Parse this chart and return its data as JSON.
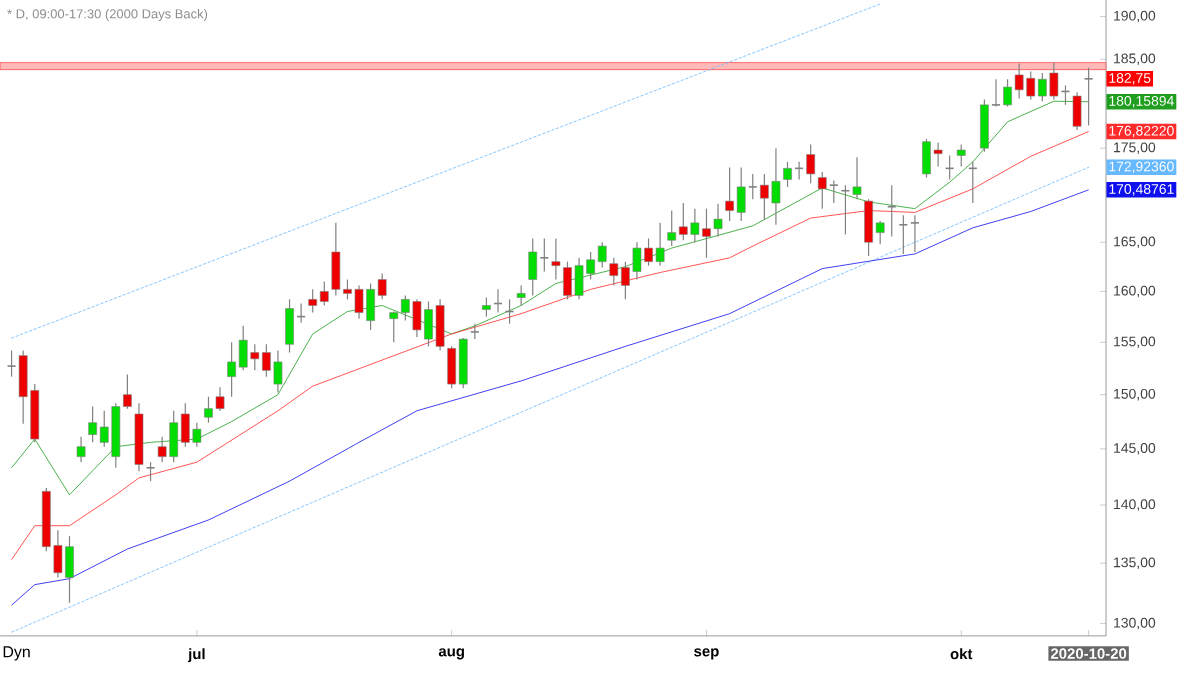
{
  "chart_data": {
    "type": "candlestick",
    "title": "* D, 09:00-17:30 (2000 Days Back)",
    "categories": [
      null,
      null,
      null,
      null,
      null,
      null,
      null,
      null,
      null,
      null,
      null,
      null,
      null,
      null,
      null,
      null,
      "jul",
      null,
      null,
      null,
      null,
      null,
      null,
      null,
      null,
      null,
      null,
      null,
      null,
      null,
      null,
      null,
      null,
      null,
      null,
      null,
      null,
      null,
      "aug",
      null,
      null,
      null,
      null,
      null,
      null,
      null,
      null,
      null,
      null,
      null,
      null,
      null,
      null,
      null,
      null,
      null,
      null,
      null,
      null,
      null,
      "sep",
      null,
      null,
      null,
      null,
      null,
      null,
      null,
      null,
      null,
      null,
      null,
      null,
      null,
      null,
      null,
      null,
      null,
      null,
      null,
      null,
      null,
      "okt",
      null,
      null,
      null,
      null,
      null,
      null,
      null,
      null,
      null,
      null,
      "2020-10-20"
    ],
    "ohlc": [
      [
        152.7,
        154.2,
        151.7,
        152.7
      ],
      [
        153.7,
        154.2,
        147.3,
        149.8
      ],
      [
        150.4,
        151.0,
        145.6,
        145.9
      ],
      [
        141.2,
        141.5,
        136.0,
        136.4
      ],
      [
        136.5,
        137.8,
        133.8,
        134.2
      ],
      [
        133.8,
        137.3,
        131.7,
        136.4
      ],
      [
        144.3,
        146.1,
        143.8,
        145.2
      ],
      [
        146.3,
        148.9,
        145.6,
        147.4
      ],
      [
        145.6,
        148.5,
        145.2,
        147.0
      ],
      [
        144.3,
        149.2,
        143.3,
        148.9
      ],
      [
        150.0,
        151.9,
        148.7,
        148.9
      ],
      [
        148.2,
        149.2,
        143.0,
        143.6
      ],
      [
        143.3,
        143.8,
        142.1,
        143.3
      ],
      [
        145.2,
        146.1,
        143.8,
        144.3
      ],
      [
        144.3,
        148.5,
        143.8,
        147.4
      ],
      [
        148.2,
        149.2,
        145.2,
        145.6
      ],
      [
        145.6,
        147.4,
        145.2,
        146.8
      ],
      [
        147.9,
        149.8,
        147.4,
        148.7
      ],
      [
        149.8,
        150.7,
        148.5,
        148.7
      ],
      [
        151.7,
        155.0,
        149.8,
        153.1
      ],
      [
        152.6,
        156.6,
        152.3,
        155.2
      ],
      [
        154.0,
        154.8,
        152.3,
        153.4
      ],
      [
        154.0,
        154.8,
        151.7,
        152.3
      ],
      [
        151.0,
        154.2,
        150.2,
        153.1
      ],
      [
        154.8,
        159.2,
        154.0,
        158.3
      ],
      [
        157.5,
        158.8,
        156.9,
        157.5
      ],
      [
        159.2,
        160.2,
        157.9,
        158.6
      ],
      [
        160.0,
        161.0,
        158.6,
        159.0
      ],
      [
        164.0,
        167.0,
        159.6,
        160.2
      ],
      [
        160.2,
        161.2,
        159.2,
        159.8
      ],
      [
        160.2,
        160.6,
        157.3,
        157.9
      ],
      [
        157.1,
        160.8,
        156.2,
        160.2
      ],
      [
        161.2,
        161.8,
        159.2,
        159.6
      ],
      [
        157.3,
        158.0,
        155.0,
        157.9
      ],
      [
        157.9,
        159.6,
        157.1,
        159.2
      ],
      [
        159.0,
        159.2,
        155.5,
        156.2
      ],
      [
        155.3,
        159.0,
        154.6,
        158.2
      ],
      [
        158.6,
        159.2,
        154.2,
        154.6
      ],
      [
        154.4,
        154.6,
        150.6,
        151.0
      ],
      [
        151.0,
        155.4,
        150.6,
        155.3
      ],
      [
        156.0,
        156.8,
        155.3,
        156.0
      ],
      [
        158.2,
        159.4,
        157.5,
        158.6
      ],
      [
        158.8,
        160.2,
        157.9,
        158.8
      ],
      [
        158.0,
        159.2,
        156.8,
        158.0
      ],
      [
        159.4,
        160.6,
        158.6,
        159.8
      ],
      [
        161.2,
        165.4,
        159.6,
        164.0
      ],
      [
        163.4,
        165.4,
        162.0,
        163.4
      ],
      [
        163.0,
        165.4,
        161.2,
        162.6
      ],
      [
        162.4,
        163.0,
        159.2,
        159.6
      ],
      [
        159.6,
        163.4,
        159.2,
        162.6
      ],
      [
        161.8,
        164.0,
        161.2,
        163.2
      ],
      [
        163.0,
        165.0,
        162.4,
        164.6
      ],
      [
        162.8,
        163.4,
        160.6,
        161.6
      ],
      [
        162.4,
        163.0,
        159.2,
        160.6
      ],
      [
        162.0,
        165.0,
        161.2,
        164.4
      ],
      [
        164.4,
        165.4,
        162.6,
        163.0
      ],
      [
        163.0,
        167.0,
        162.6,
        164.4
      ],
      [
        165.2,
        168.3,
        164.6,
        166.0
      ],
      [
        166.6,
        169.1,
        165.2,
        165.8
      ],
      [
        165.8,
        168.5,
        165.0,
        167.0
      ],
      [
        166.4,
        168.5,
        163.4,
        165.6
      ],
      [
        166.4,
        169.0,
        165.6,
        167.4
      ],
      [
        169.3,
        172.9,
        167.2,
        168.3
      ],
      [
        168.1,
        172.9,
        167.2,
        170.8
      ],
      [
        170.8,
        172.2,
        169.5,
        170.8
      ],
      [
        171.0,
        172.2,
        167.3,
        169.6
      ],
      [
        169.1,
        175.0,
        166.8,
        171.4
      ],
      [
        171.6,
        173.5,
        170.8,
        172.8
      ],
      [
        172.8,
        173.5,
        171.6,
        172.8
      ],
      [
        174.3,
        175.4,
        171.2,
        172.2
      ],
      [
        171.8,
        172.4,
        168.5,
        170.6
      ],
      [
        171.0,
        171.5,
        169.1,
        171.0
      ],
      [
        170.4,
        171.0,
        165.8,
        170.4
      ],
      [
        170.0,
        174.0,
        169.5,
        170.8
      ],
      [
        169.3,
        169.5,
        163.6,
        165.0
      ],
      [
        166.0,
        167.2,
        164.8,
        167.0
      ],
      [
        168.7,
        171.0,
        165.6,
        168.7
      ],
      [
        166.8,
        167.8,
        163.8,
        166.8
      ],
      [
        167.0,
        167.8,
        164.0,
        167.0
      ],
      [
        172.2,
        176.0,
        171.8,
        175.7
      ],
      [
        174.8,
        175.6,
        173.0,
        174.4
      ],
      [
        172.8,
        174.2,
        171.6,
        172.8
      ],
      [
        174.2,
        175.4,
        173.0,
        174.8
      ],
      [
        172.8,
        173.5,
        169.1,
        172.8
      ],
      [
        175.0,
        180.4,
        174.6,
        179.8
      ],
      [
        179.8,
        182.7,
        179.6,
        179.8
      ],
      [
        179.8,
        182.7,
        179.6,
        181.8
      ],
      [
        183.2,
        184.5,
        180.5,
        181.5
      ],
      [
        182.8,
        183.6,
        180.4,
        180.8
      ],
      [
        180.8,
        183.4,
        180.2,
        182.7
      ],
      [
        183.4,
        184.6,
        180.4,
        180.8
      ],
      [
        181.3,
        182.0,
        179.8,
        181.3
      ],
      [
        180.8,
        181.2,
        177.0,
        177.4
      ],
      [
        182.75,
        184.0,
        177.5,
        182.75
      ]
    ],
    "series": [
      {
        "type": "line",
        "color": "#66b8ff",
        "line_style": "dotted",
        "values": [
          155.4,
          null,
          null,
          null,
          null,
          null,
          null,
          null,
          null,
          null,
          null,
          null,
          null,
          null,
          null,
          null,
          null,
          null,
          null,
          null,
          null,
          null,
          null,
          null,
          null,
          null,
          null,
          null,
          null,
          null,
          null,
          null,
          null,
          null,
          null,
          null,
          null,
          null,
          null,
          null,
          null,
          null,
          null,
          null,
          null,
          null,
          null,
          null,
          null,
          null,
          null,
          null,
          null,
          null,
          null,
          null,
          null,
          null,
          null,
          null,
          null,
          null,
          null,
          null,
          null,
          null,
          null,
          null,
          null,
          null,
          null,
          null,
          null,
          null,
          null,
          191.5,
          null,
          null,
          null,
          null,
          null,
          null,
          null,
          null,
          null,
          null,
          null,
          null,
          null,
          null,
          null,
          null,
          null,
          null
        ]
      },
      {
        "type": "line",
        "color": "#66b8ff",
        "line_style": "dotted",
        "values": [
          129.3,
          null,
          null,
          null,
          null,
          null,
          null,
          null,
          null,
          null,
          null,
          null,
          null,
          null,
          null,
          null,
          null,
          null,
          null,
          null,
          null,
          null,
          null,
          null,
          null,
          null,
          null,
          null,
          null,
          null,
          null,
          null,
          null,
          null,
          null,
          null,
          null,
          null,
          null,
          null,
          null,
          null,
          null,
          null,
          null,
          null,
          null,
          null,
          null,
          null,
          null,
          null,
          null,
          null,
          null,
          null,
          null,
          null,
          null,
          null,
          null,
          null,
          null,
          null,
          null,
          null,
          null,
          null,
          null,
          null,
          null,
          null,
          null,
          null,
          null,
          null,
          null,
          null,
          null,
          null,
          null,
          null,
          null,
          null,
          null,
          null,
          null,
          null,
          null,
          null,
          null,
          null,
          null,
          172.9236
        ],
        "value_labels": [
          null,
          null,
          null,
          null,
          null,
          null,
          null,
          null,
          null,
          null,
          null,
          null,
          null,
          null,
          null,
          null,
          null,
          null,
          null,
          null,
          null,
          null,
          null,
          null,
          null,
          null,
          null,
          null,
          null,
          null,
          null,
          null,
          null,
          null,
          null,
          null,
          null,
          null,
          null,
          null,
          null,
          null,
          null,
          null,
          null,
          null,
          null,
          null,
          null,
          null,
          null,
          null,
          null,
          null,
          null,
          null,
          null,
          null,
          null,
          null,
          null,
          null,
          null,
          null,
          null,
          null,
          null,
          null,
          null,
          null,
          null,
          null,
          null,
          null,
          null,
          null,
          null,
          null,
          null,
          null,
          null,
          null,
          null,
          null,
          null,
          null,
          null,
          null,
          null,
          null,
          null,
          null,
          null,
          "172,92360"
        ]
      },
      {
        "type": "line",
        "color": "#1f9e1f",
        "line_style": "solid",
        "values": [
          143.3,
          null,
          145.9,
          null,
          null,
          140.9,
          null,
          null,
          null,
          145.2,
          null,
          null,
          145.6,
          null,
          null,
          null,
          145.9,
          null,
          null,
          147.5,
          null,
          null,
          null,
          150.0,
          null,
          null,
          155.8,
          null,
          null,
          158.0,
          null,
          null,
          158.6,
          null,
          null,
          null,
          null,
          null,
          155.8,
          null,
          156.6,
          null,
          null,
          null,
          158.6,
          null,
          null,
          160.8,
          null,
          null,
          null,
          null,
          null,
          162.5,
          null,
          null,
          null,
          164.4,
          null,
          null,
          null,
          null,
          null,
          null,
          166.7,
          null,
          null,
          null,
          null,
          null,
          170.7,
          null,
          null,
          null,
          169.2,
          null,
          null,
          null,
          168.5,
          null,
          null,
          171.3,
          null,
          173.5,
          null,
          null,
          177.9,
          null,
          null,
          null,
          180.2,
          null,
          null,
          180.15894
        ],
        "value_labels": [
          null,
          null,
          null,
          null,
          null,
          null,
          null,
          null,
          null,
          null,
          null,
          null,
          null,
          null,
          null,
          null,
          null,
          null,
          null,
          null,
          null,
          null,
          null,
          null,
          null,
          null,
          null,
          null,
          null,
          null,
          null,
          null,
          null,
          null,
          null,
          null,
          null,
          null,
          null,
          null,
          null,
          null,
          null,
          null,
          null,
          null,
          null,
          null,
          null,
          null,
          null,
          null,
          null,
          null,
          null,
          null,
          null,
          null,
          null,
          null,
          null,
          null,
          null,
          null,
          null,
          null,
          null,
          null,
          null,
          null,
          null,
          null,
          null,
          null,
          null,
          null,
          null,
          null,
          null,
          null,
          null,
          null,
          null,
          null,
          null,
          null,
          null,
          null,
          null,
          null,
          null,
          null,
          null,
          "180,15894"
        ]
      },
      {
        "type": "line",
        "color": "#ff2a2a",
        "line_style": "solid",
        "values": [
          135.3,
          null,
          138.2,
          null,
          null,
          138.2,
          null,
          null,
          null,
          140.9,
          null,
          142.4,
          null,
          null,
          null,
          null,
          143.8,
          null,
          null,
          null,
          null,
          null,
          null,
          148.5,
          null,
          null,
          150.8,
          null,
          null,
          null,
          null,
          null,
          null,
          null,
          null,
          null,
          null,
          null,
          155.8,
          null,
          null,
          null,
          null,
          null,
          157.8,
          null,
          null,
          null,
          null,
          null,
          160.2,
          null,
          null,
          null,
          null,
          null,
          161.9,
          null,
          null,
          null,
          null,
          null,
          163.4,
          null,
          164.6,
          null,
          null,
          null,
          null,
          167.5,
          null,
          null,
          null,
          null,
          168.3,
          null,
          null,
          null,
          168.1,
          null,
          null,
          null,
          null,
          170.6,
          null,
          null,
          null,
          null,
          174.1,
          null,
          null,
          null,
          null,
          176.8222
        ],
        "value_labels": [
          null,
          null,
          null,
          null,
          null,
          null,
          null,
          null,
          null,
          null,
          null,
          null,
          null,
          null,
          null,
          null,
          null,
          null,
          null,
          null,
          null,
          null,
          null,
          null,
          null,
          null,
          null,
          null,
          null,
          null,
          null,
          null,
          null,
          null,
          null,
          null,
          null,
          null,
          null,
          null,
          null,
          null,
          null,
          null,
          null,
          null,
          null,
          null,
          null,
          null,
          null,
          null,
          null,
          null,
          null,
          null,
          null,
          null,
          null,
          null,
          null,
          null,
          null,
          null,
          null,
          null,
          null,
          null,
          null,
          null,
          null,
          null,
          null,
          null,
          null,
          null,
          null,
          null,
          null,
          null,
          null,
          null,
          null,
          null,
          null,
          null,
          null,
          null,
          null,
          null,
          null,
          null,
          null,
          "176,82220"
        ]
      },
      {
        "type": "line",
        "color": "#1010ee",
        "line_style": "solid",
        "values": [
          131.5,
          null,
          133.2,
          null,
          null,
          133.7,
          null,
          null,
          null,
          null,
          136.2,
          null,
          null,
          null,
          null,
          null,
          null,
          138.7,
          null,
          null,
          null,
          null,
          null,
          null,
          142.1,
          null,
          null,
          null,
          null,
          null,
          145.6,
          null,
          null,
          null,
          null,
          148.5,
          null,
          null,
          null,
          null,
          null,
          null,
          null,
          null,
          151.3,
          null,
          null,
          null,
          null,
          null,
          null,
          null,
          null,
          154.6,
          null,
          null,
          null,
          null,
          null,
          null,
          null,
          null,
          157.8,
          null,
          null,
          null,
          null,
          null,
          null,
          null,
          162.3,
          null,
          null,
          null,
          null,
          null,
          null,
          null,
          163.8,
          null,
          null,
          null,
          null,
          166.5,
          null,
          null,
          null,
          null,
          168.2,
          null,
          null,
          null,
          null,
          170.48761
        ],
        "value_labels": [
          null,
          null,
          null,
          null,
          null,
          null,
          null,
          null,
          null,
          null,
          null,
          null,
          null,
          null,
          null,
          null,
          null,
          null,
          null,
          null,
          null,
          null,
          null,
          null,
          null,
          null,
          null,
          null,
          null,
          null,
          null,
          null,
          null,
          null,
          null,
          null,
          null,
          null,
          null,
          null,
          null,
          null,
          null,
          null,
          null,
          null,
          null,
          null,
          null,
          null,
          null,
          null,
          null,
          null,
          null,
          null,
          null,
          null,
          null,
          null,
          null,
          null,
          null,
          null,
          null,
          null,
          null,
          null,
          null,
          null,
          null,
          null,
          null,
          null,
          null,
          null,
          null,
          null,
          null,
          null,
          null,
          null,
          null,
          null,
          null,
          null,
          null,
          null,
          null,
          null,
          null,
          null,
          null,
          "170,48761"
        ]
      }
    ],
    "log": true,
    "ylim": [
      129,
      192
    ],
    "yticks": [
      {
        "value": 130,
        "label": "130,00"
      },
      {
        "value": 135,
        "label": "135,00"
      },
      {
        "value": 140,
        "label": "140,00"
      },
      {
        "value": 145,
        "label": "145,00"
      },
      {
        "value": 150,
        "label": "150,00"
      },
      {
        "value": 155,
        "label": "155,00"
      },
      {
        "value": 160,
        "label": "160,00"
      },
      {
        "value": 165,
        "label": "165,00"
      },
      {
        "value": 175,
        "label": "175,00"
      },
      {
        "value": 185,
        "label": "185,00"
      },
      {
        "value": 190,
        "label": "190,00"
      }
    ],
    "bands": [
      {
        "axis": "y",
        "from": 183.8,
        "to": 184.6,
        "color": "#ff5050"
      }
    ],
    "annotations": [
      "182,75",
      "Dyn"
    ]
  }
}
